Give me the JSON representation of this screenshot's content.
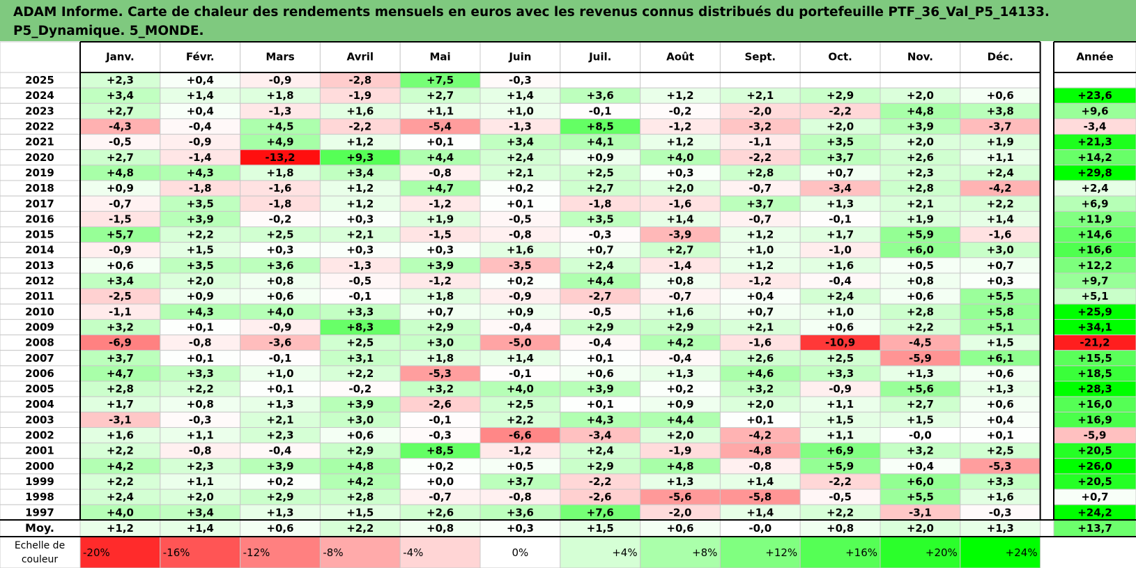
{
  "title_line1": "ADAM Informe. Carte de chaleur des rendements mensuels en euros avec les revenus connus distribués du portefeuille PTF_36_Val_P5_14133.",
  "title_line2": "P5_Dynamique. 5_MONDE.",
  "chart_data": {
    "type": "heatmap",
    "months": [
      "Janv.",
      "Févr.",
      "Mars",
      "Avril",
      "Mai",
      "Juin",
      "Juil.",
      "Août",
      "Sept.",
      "Oct.",
      "Nov.",
      "Déc."
    ],
    "year_column_label": "Année",
    "rows": [
      {
        "year": "2025",
        "values": [
          "+2,3",
          "+0,4",
          "-0,9",
          "-2,8",
          "+7,5",
          "-0,3",
          "",
          "",
          "",
          "",
          "",
          ""
        ],
        "annual": ""
      },
      {
        "year": "2024",
        "values": [
          "+3,4",
          "+1,4",
          "+1,8",
          "-1,9",
          "+2,7",
          "+1,4",
          "+3,6",
          "+1,2",
          "+2,1",
          "+2,9",
          "+2,0",
          "+0,6"
        ],
        "annual": "+23,6"
      },
      {
        "year": "2023",
        "values": [
          "+2,7",
          "+0,4",
          "-1,3",
          "+1,6",
          "+1,1",
          "+1,0",
          "-0,1",
          "-0,2",
          "-2,0",
          "-2,2",
          "+4,8",
          "+3,8"
        ],
        "annual": "+9,6"
      },
      {
        "year": "2022",
        "values": [
          "-4,3",
          "-0,4",
          "+4,5",
          "-2,2",
          "-5,4",
          "-1,3",
          "+8,5",
          "-1,2",
          "-3,2",
          "+2,0",
          "+3,9",
          "-3,7"
        ],
        "annual": "-3,4"
      },
      {
        "year": "2021",
        "values": [
          "-0,5",
          "-0,9",
          "+4,9",
          "+1,2",
          "+0,1",
          "+3,4",
          "+4,1",
          "+1,2",
          "-1,1",
          "+3,5",
          "+2,0",
          "+1,9"
        ],
        "annual": "+21,3"
      },
      {
        "year": "2020",
        "values": [
          "+2,7",
          "-1,4",
          "-13,2",
          "+9,3",
          "+4,4",
          "+2,4",
          "+0,9",
          "+4,0",
          "-2,2",
          "+3,7",
          "+2,6",
          "+1,1"
        ],
        "annual": "+14,2"
      },
      {
        "year": "2019",
        "values": [
          "+4,8",
          "+4,3",
          "+1,8",
          "+3,4",
          "-0,8",
          "+2,1",
          "+2,5",
          "+0,3",
          "+2,8",
          "+0,7",
          "+2,3",
          "+2,4"
        ],
        "annual": "+29,8"
      },
      {
        "year": "2018",
        "values": [
          "+0,9",
          "-1,8",
          "-1,6",
          "+1,2",
          "+4,7",
          "+0,2",
          "+2,7",
          "+2,0",
          "-0,7",
          "-3,4",
          "+2,8",
          "-4,2"
        ],
        "annual": "+2,4"
      },
      {
        "year": "2017",
        "values": [
          "-0,7",
          "+3,5",
          "-1,8",
          "+1,2",
          "-1,2",
          "+0,1",
          "-1,8",
          "-1,6",
          "+3,7",
          "+1,3",
          "+2,1",
          "+2,2"
        ],
        "annual": "+6,9"
      },
      {
        "year": "2016",
        "values": [
          "-1,5",
          "+3,9",
          "-0,2",
          "+0,3",
          "+1,9",
          "-0,5",
          "+3,5",
          "+1,4",
          "-0,7",
          "-0,1",
          "+1,9",
          "+1,4"
        ],
        "annual": "+11,9"
      },
      {
        "year": "2015",
        "values": [
          "+5,7",
          "+2,2",
          "+2,5",
          "+2,1",
          "-1,5",
          "-0,8",
          "-0,3",
          "-3,9",
          "+1,2",
          "+1,7",
          "+5,9",
          "-1,6"
        ],
        "annual": "+14,6"
      },
      {
        "year": "2014",
        "values": [
          "-0,9",
          "+1,5",
          "+0,3",
          "+0,3",
          "+0,3",
          "+1,6",
          "+0,7",
          "+2,7",
          "+1,0",
          "-1,0",
          "+6,0",
          "+3,0"
        ],
        "annual": "+16,6"
      },
      {
        "year": "2013",
        "values": [
          "+0,6",
          "+3,5",
          "+3,6",
          "-1,3",
          "+3,9",
          "-3,5",
          "+2,4",
          "-1,4",
          "+1,2",
          "+1,6",
          "+0,5",
          "+0,7"
        ],
        "annual": "+12,2"
      },
      {
        "year": "2012",
        "values": [
          "+3,4",
          "+2,0",
          "+0,8",
          "-0,5",
          "-1,2",
          "+0,2",
          "+4,4",
          "+0,8",
          "-1,2",
          "-0,4",
          "+0,8",
          "+0,3"
        ],
        "annual": "+9,7"
      },
      {
        "year": "2011",
        "values": [
          "-2,5",
          "+0,9",
          "+0,6",
          "-0,1",
          "+1,8",
          "-0,9",
          "-2,7",
          "-0,7",
          "+0,4",
          "+2,4",
          "+0,6",
          "+5,5"
        ],
        "annual": "+5,1"
      },
      {
        "year": "2010",
        "values": [
          "-1,1",
          "+4,3",
          "+4,0",
          "+3,3",
          "+0,7",
          "+0,9",
          "-0,5",
          "+1,6",
          "+0,7",
          "+1,0",
          "+2,8",
          "+5,8"
        ],
        "annual": "+25,9"
      },
      {
        "year": "2009",
        "values": [
          "+3,2",
          "+0,1",
          "-0,9",
          "+8,3",
          "+2,9",
          "-0,4",
          "+2,9",
          "+2,9",
          "+2,1",
          "+0,6",
          "+2,2",
          "+5,1"
        ],
        "annual": "+34,1"
      },
      {
        "year": "2008",
        "values": [
          "-6,9",
          "-0,8",
          "-3,6",
          "+2,5",
          "+3,0",
          "-5,0",
          "-0,4",
          "+4,2",
          "-1,6",
          "-10,9",
          "-4,5",
          "+1,5"
        ],
        "annual": "-21,2"
      },
      {
        "year": "2007",
        "values": [
          "+3,7",
          "+0,1",
          "-0,1",
          "+3,1",
          "+1,8",
          "+1,4",
          "+0,1",
          "-0,4",
          "+2,6",
          "+2,5",
          "-5,9",
          "+6,1"
        ],
        "annual": "+15,5"
      },
      {
        "year": "2006",
        "values": [
          "+4,7",
          "+3,3",
          "+1,0",
          "+2,2",
          "-5,3",
          "-0,1",
          "+0,6",
          "+1,3",
          "+4,6",
          "+3,3",
          "+1,3",
          "+0,6"
        ],
        "annual": "+18,5"
      },
      {
        "year": "2005",
        "values": [
          "+2,8",
          "+2,2",
          "+0,1",
          "-0,2",
          "+3,2",
          "+4,0",
          "+3,9",
          "+0,2",
          "+3,2",
          "-0,9",
          "+5,6",
          "+1,3"
        ],
        "annual": "+28,3"
      },
      {
        "year": "2004",
        "values": [
          "+1,7",
          "+0,8",
          "+1,3",
          "+3,9",
          "-2,6",
          "+2,5",
          "+0,1",
          "+0,9",
          "+2,0",
          "+1,1",
          "+2,7",
          "+0,6"
        ],
        "annual": "+16,0"
      },
      {
        "year": "2003",
        "values": [
          "-3,1",
          "-0,3",
          "+2,1",
          "+3,0",
          "-0,1",
          "+2,2",
          "+4,3",
          "+4,4",
          "+0,1",
          "+1,5",
          "+1,5",
          "+0,4"
        ],
        "annual": "+16,9"
      },
      {
        "year": "2002",
        "values": [
          "+1,6",
          "+1,1",
          "+2,3",
          "+0,6",
          "-0,3",
          "-6,6",
          "-3,4",
          "+2,0",
          "-4,2",
          "+1,1",
          "-0,0",
          "+0,1"
        ],
        "annual": "-5,9"
      },
      {
        "year": "2001",
        "values": [
          "+2,2",
          "-0,8",
          "-0,4",
          "+2,9",
          "+8,5",
          "-1,2",
          "+2,4",
          "-1,9",
          "-4,8",
          "+6,9",
          "+3,2",
          "+2,5"
        ],
        "annual": "+20,5"
      },
      {
        "year": "2000",
        "values": [
          "+4,2",
          "+2,3",
          "+3,9",
          "+4,8",
          "+0,2",
          "+0,5",
          "+2,9",
          "+4,8",
          "-0,8",
          "+5,9",
          "+0,4",
          "-5,3"
        ],
        "annual": "+26,0"
      },
      {
        "year": "1999",
        "values": [
          "+2,2",
          "+1,1",
          "+0,2",
          "+4,2",
          "+0,0",
          "+3,7",
          "-2,2",
          "+1,3",
          "+1,4",
          "-2,2",
          "+6,0",
          "+3,3"
        ],
        "annual": "+20,5"
      },
      {
        "year": "1998",
        "values": [
          "+2,4",
          "+2,0",
          "+2,9",
          "+2,8",
          "-0,7",
          "-0,8",
          "-2,6",
          "-5,6",
          "-5,8",
          "-0,5",
          "+5,5",
          "+1,6"
        ],
        "annual": "+0,7"
      },
      {
        "year": "1997",
        "values": [
          "+4,0",
          "+3,4",
          "+1,3",
          "+1,5",
          "+2,6",
          "+3,6",
          "+7,6",
          "-2,0",
          "+1,4",
          "+2,2",
          "-3,1",
          "-0,3"
        ],
        "annual": "+24,2"
      }
    ],
    "average": {
      "label": "Moy.",
      "values": [
        "+1,2",
        "+1,4",
        "+0,6",
        "+2,2",
        "+0,8",
        "+0,3",
        "+1,5",
        "+0,6",
        "-0,0",
        "+0,8",
        "+2,0",
        "+1,3"
      ],
      "annual": "+13,7"
    },
    "scale": {
      "label_line1": "Echelle de",
      "label_line2": "couleur",
      "items": [
        "-20%",
        "-16%",
        "-12%",
        "-8%",
        "-4%",
        "0%",
        "+4%",
        "+8%",
        "+12%",
        "+16%",
        "+20%",
        "+24%"
      ]
    },
    "colors": {
      "negative_max": "#ff0000",
      "positive_max": "#00ff00",
      "neutral": "#ffffff",
      "title_bg": "#7fc97f"
    }
  }
}
